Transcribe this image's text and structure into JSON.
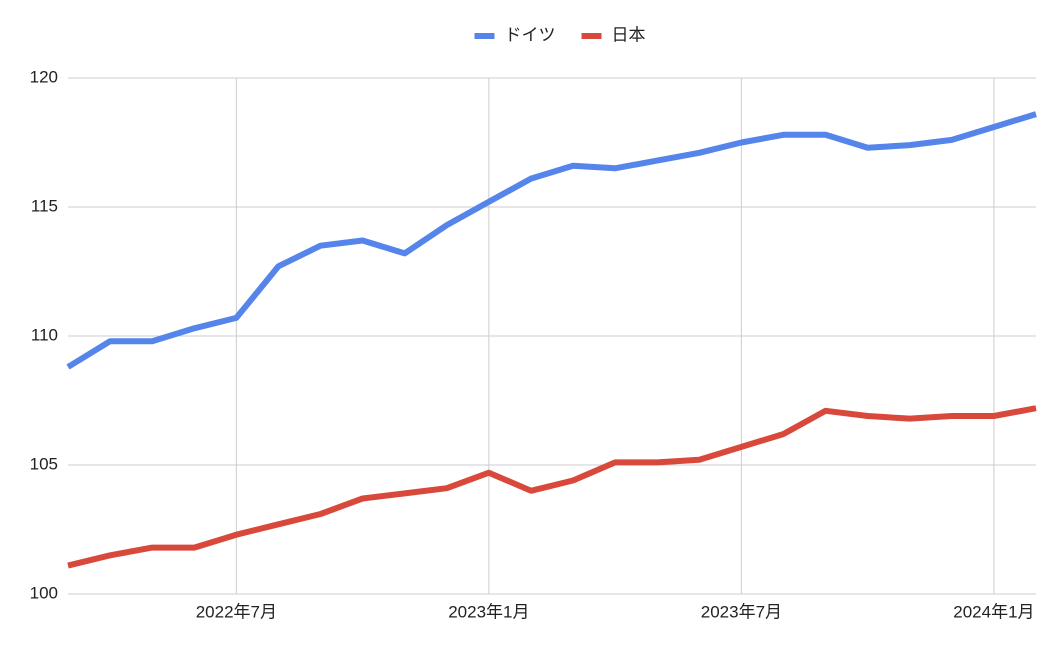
{
  "chart_data": {
    "type": "line",
    "x": [
      "2022-03",
      "2022-04",
      "2022-05",
      "2022-06",
      "2022-07",
      "2022-08",
      "2022-09",
      "2022-10",
      "2022-11",
      "2022-12",
      "2023-01",
      "2023-02",
      "2023-03",
      "2023-04",
      "2023-05",
      "2023-06",
      "2023-07",
      "2023-08",
      "2023-09",
      "2023-10",
      "2023-11",
      "2023-12",
      "2024-01",
      "2024-02"
    ],
    "xlim": [
      "2022-03",
      "2024-02"
    ],
    "xticks": [
      {
        "value": "2022-07",
        "label": "2022年7月"
      },
      {
        "value": "2023-01",
        "label": "2023年1月"
      },
      {
        "value": "2023-07",
        "label": "2023年7月"
      },
      {
        "value": "2024-01",
        "label": "2024年1月"
      }
    ],
    "ylim": [
      100,
      120
    ],
    "yticks": [
      100,
      105,
      110,
      115,
      120
    ],
    "grid": true,
    "legend": "top",
    "series": [
      {
        "name": "ドイツ",
        "color": "#5584ea",
        "values": [
          108.8,
          109.8,
          109.8,
          110.3,
          110.7,
          112.7,
          113.5,
          113.7,
          113.2,
          114.3,
          115.2,
          116.1,
          116.6,
          116.5,
          116.8,
          117.1,
          117.5,
          117.8,
          117.8,
          117.3,
          117.4,
          117.6,
          118.1,
          118.6
        ]
      },
      {
        "name": "日本",
        "color": "#d9493b",
        "values": [
          101.1,
          101.5,
          101.8,
          101.8,
          102.3,
          102.7,
          103.1,
          103.7,
          103.9,
          104.1,
          104.7,
          104.0,
          104.4,
          105.1,
          105.1,
          105.2,
          105.7,
          106.2,
          107.1,
          106.9,
          106.8,
          106.9,
          106.9,
          107.2
        ]
      }
    ]
  }
}
